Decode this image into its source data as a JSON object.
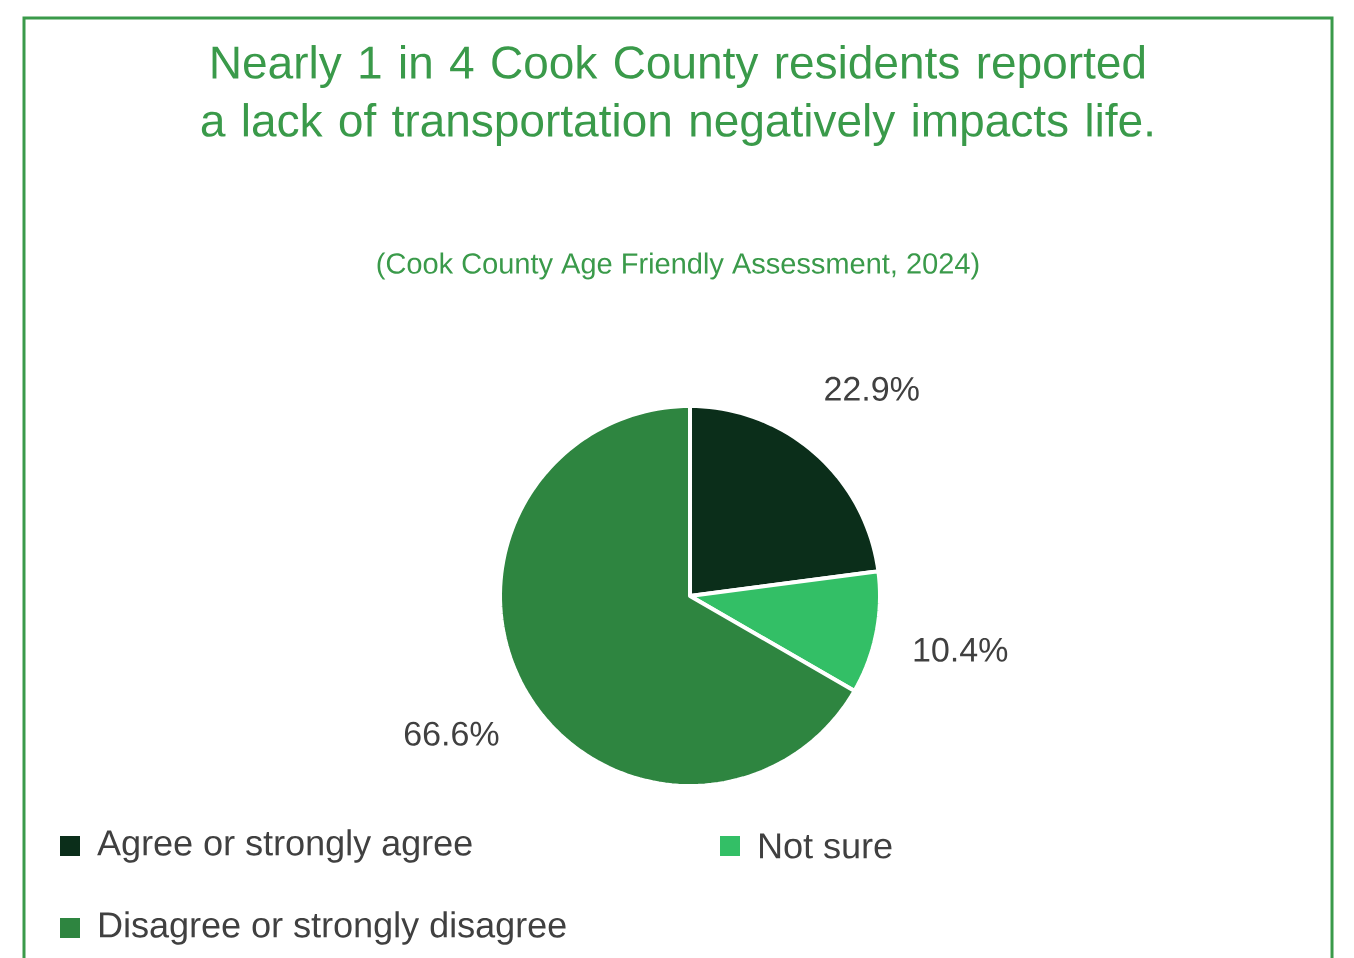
{
  "chart_data": {
    "type": "pie",
    "title": "Nearly 1 in 4 Cook County residents reported a lack of transportation negatively impacts life.",
    "subtitle": "(Cook County Age Friendly Assessment, 2024)",
    "categories": [
      "Agree or strongly agree",
      "Not sure",
      "Disagree or strongly disagree"
    ],
    "values": [
      22.9,
      10.4,
      66.6
    ],
    "value_labels": [
      "22.9%",
      "10.4%",
      "66.6%"
    ],
    "colors": [
      "#0b2e1a",
      "#33bf66",
      "#2e8540"
    ],
    "legend": "bottom"
  }
}
